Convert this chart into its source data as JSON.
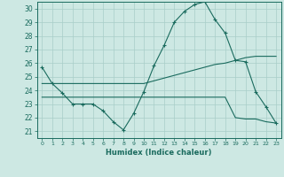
{
  "xlabel": "Humidex (Indice chaleur)",
  "xlim": [
    -0.5,
    23.5
  ],
  "ylim": [
    20.5,
    30.5
  ],
  "yticks": [
    21,
    22,
    23,
    24,
    25,
    26,
    27,
    28,
    29,
    30
  ],
  "xticks": [
    0,
    1,
    2,
    3,
    4,
    5,
    6,
    7,
    8,
    9,
    10,
    11,
    12,
    13,
    14,
    15,
    16,
    17,
    18,
    19,
    20,
    21,
    22,
    23
  ],
  "background_color": "#cde8e3",
  "line_color": "#1a6b5e",
  "grid_color": "#a8cec8",
  "line1_x": [
    0,
    1,
    2,
    3,
    4,
    5,
    6,
    7,
    8,
    9,
    10,
    11,
    12,
    13,
    14,
    15,
    16,
    17,
    18,
    19,
    20,
    21,
    22,
    23
  ],
  "line1_y": [
    25.7,
    24.5,
    23.8,
    23.0,
    23.0,
    23.0,
    22.5,
    21.7,
    21.1,
    22.3,
    23.9,
    25.8,
    27.3,
    29.0,
    29.8,
    30.3,
    30.5,
    29.2,
    28.2,
    26.2,
    26.1,
    23.9,
    22.8,
    21.6
  ],
  "line2_x": [
    0,
    1,
    2,
    3,
    4,
    5,
    6,
    7,
    8,
    9,
    10,
    11,
    12,
    13,
    14,
    15,
    16,
    17,
    18,
    19,
    20,
    21,
    22,
    23
  ],
  "line2_y": [
    24.5,
    24.5,
    24.5,
    24.5,
    24.5,
    24.5,
    24.5,
    24.5,
    24.5,
    24.5,
    24.5,
    24.7,
    24.9,
    25.1,
    25.3,
    25.5,
    25.7,
    25.9,
    26.0,
    26.2,
    26.4,
    26.5,
    26.5,
    26.5
  ],
  "line3_x": [
    0,
    1,
    2,
    3,
    4,
    5,
    6,
    7,
    8,
    9,
    10,
    11,
    12,
    13,
    14,
    15,
    16,
    17,
    18,
    19,
    20,
    21,
    22,
    23
  ],
  "line3_y": [
    23.5,
    23.5,
    23.5,
    23.5,
    23.5,
    23.5,
    23.5,
    23.5,
    23.5,
    23.5,
    23.5,
    23.5,
    23.5,
    23.5,
    23.5,
    23.5,
    23.5,
    23.5,
    23.5,
    22.0,
    21.9,
    21.9,
    21.7,
    21.6
  ]
}
